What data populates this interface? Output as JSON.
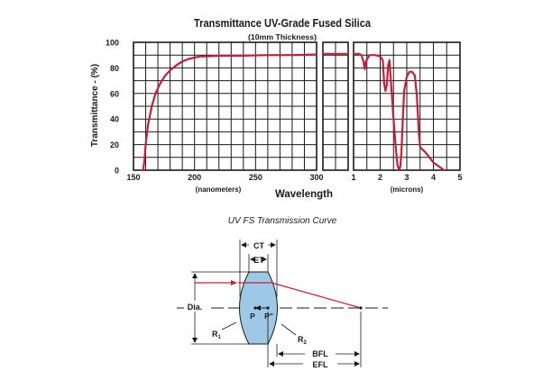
{
  "chart_data": [
    {
      "type": "line",
      "title": "Transmittance UV-Grade Fused Silica",
      "subtitle": "(10mm Thickness)",
      "ylabel": "Transmittance - (%)",
      "xlabel": "Wavelength",
      "ylim": [
        0,
        100
      ],
      "grid": true,
      "line_color": "#c41e3a",
      "y_ticks": [
        "0",
        "20",
        "40",
        "60",
        "80",
        "100"
      ],
      "panels": [
        {
          "id": "nm",
          "unit_label": "(nanometers)",
          "xlim": [
            150,
            300
          ],
          "x_tick_labels": [
            "150",
            "200",
            "250",
            "300"
          ],
          "x_ticks": [
            150,
            200,
            250,
            300
          ],
          "series": [
            {
              "x": [
                158,
                159,
                160,
                162,
                165,
                168,
                172,
                176,
                180,
                185,
                190,
                195,
                200,
                205,
                210,
                220,
                240,
                260,
                280,
                300
              ],
              "y": [
                0,
                8,
                20,
                36,
                50,
                60,
                68,
                74,
                78,
                82,
                85,
                87,
                88,
                89,
                89,
                89.5,
                89.5,
                90,
                90,
                90.5
              ]
            }
          ]
        },
        {
          "id": "mid",
          "xlim": [
            0,
            1
          ],
          "series": [
            {
              "x": [
                0,
                0.5,
                1
              ],
              "y": [
                91,
                91,
                91
              ]
            }
          ]
        },
        {
          "id": "micron",
          "unit_label": "(microns)",
          "xlim": [
            1,
            5
          ],
          "x_tick_labels": [
            "1",
            "2",
            "3",
            "4",
            "5"
          ],
          "x_ticks": [
            1,
            2,
            3,
            4,
            5
          ],
          "series": [
            {
              "x": [
                1.0,
                1.2,
                1.3,
                1.38,
                1.42,
                1.46,
                1.6,
                1.8,
                2.0,
                2.1,
                2.15,
                2.2,
                2.25,
                2.3,
                2.35,
                2.5,
                2.6,
                2.65,
                2.7,
                2.73,
                2.76,
                2.8,
                2.85,
                2.9,
                3.0,
                3.1,
                3.2,
                3.3,
                3.38,
                3.45,
                3.5,
                3.6,
                3.7,
                3.85,
                4.0,
                4.2,
                4.4
              ],
              "y": [
                91,
                91,
                90,
                84,
                79,
                85,
                90,
                90,
                89,
                86,
                68,
                62,
                67,
                82,
                86,
                40,
                14,
                4,
                1,
                1,
                3,
                14,
                40,
                62,
                73,
                77,
                77,
                74,
                58,
                30,
                18,
                16,
                14,
                10,
                6,
                3,
                0
              ]
            }
          ]
        }
      ]
    }
  ],
  "caption": "UV FS Transmission Curve",
  "lens_diagram": {
    "labels": {
      "ct": "CT",
      "et": "ET",
      "dia": "Dia.",
      "p": "P",
      "p_prime": "P\"",
      "r1": "R",
      "r1_sub": "1",
      "r2": "R",
      "r2_sub": "2",
      "bfl": "BFL",
      "efl": "EFL"
    },
    "colors": {
      "lens_fill": "#9dc8e6",
      "lens_stroke": "#1a1a1a",
      "ray": "#c41e3a",
      "line": "#1a1a1a"
    }
  }
}
